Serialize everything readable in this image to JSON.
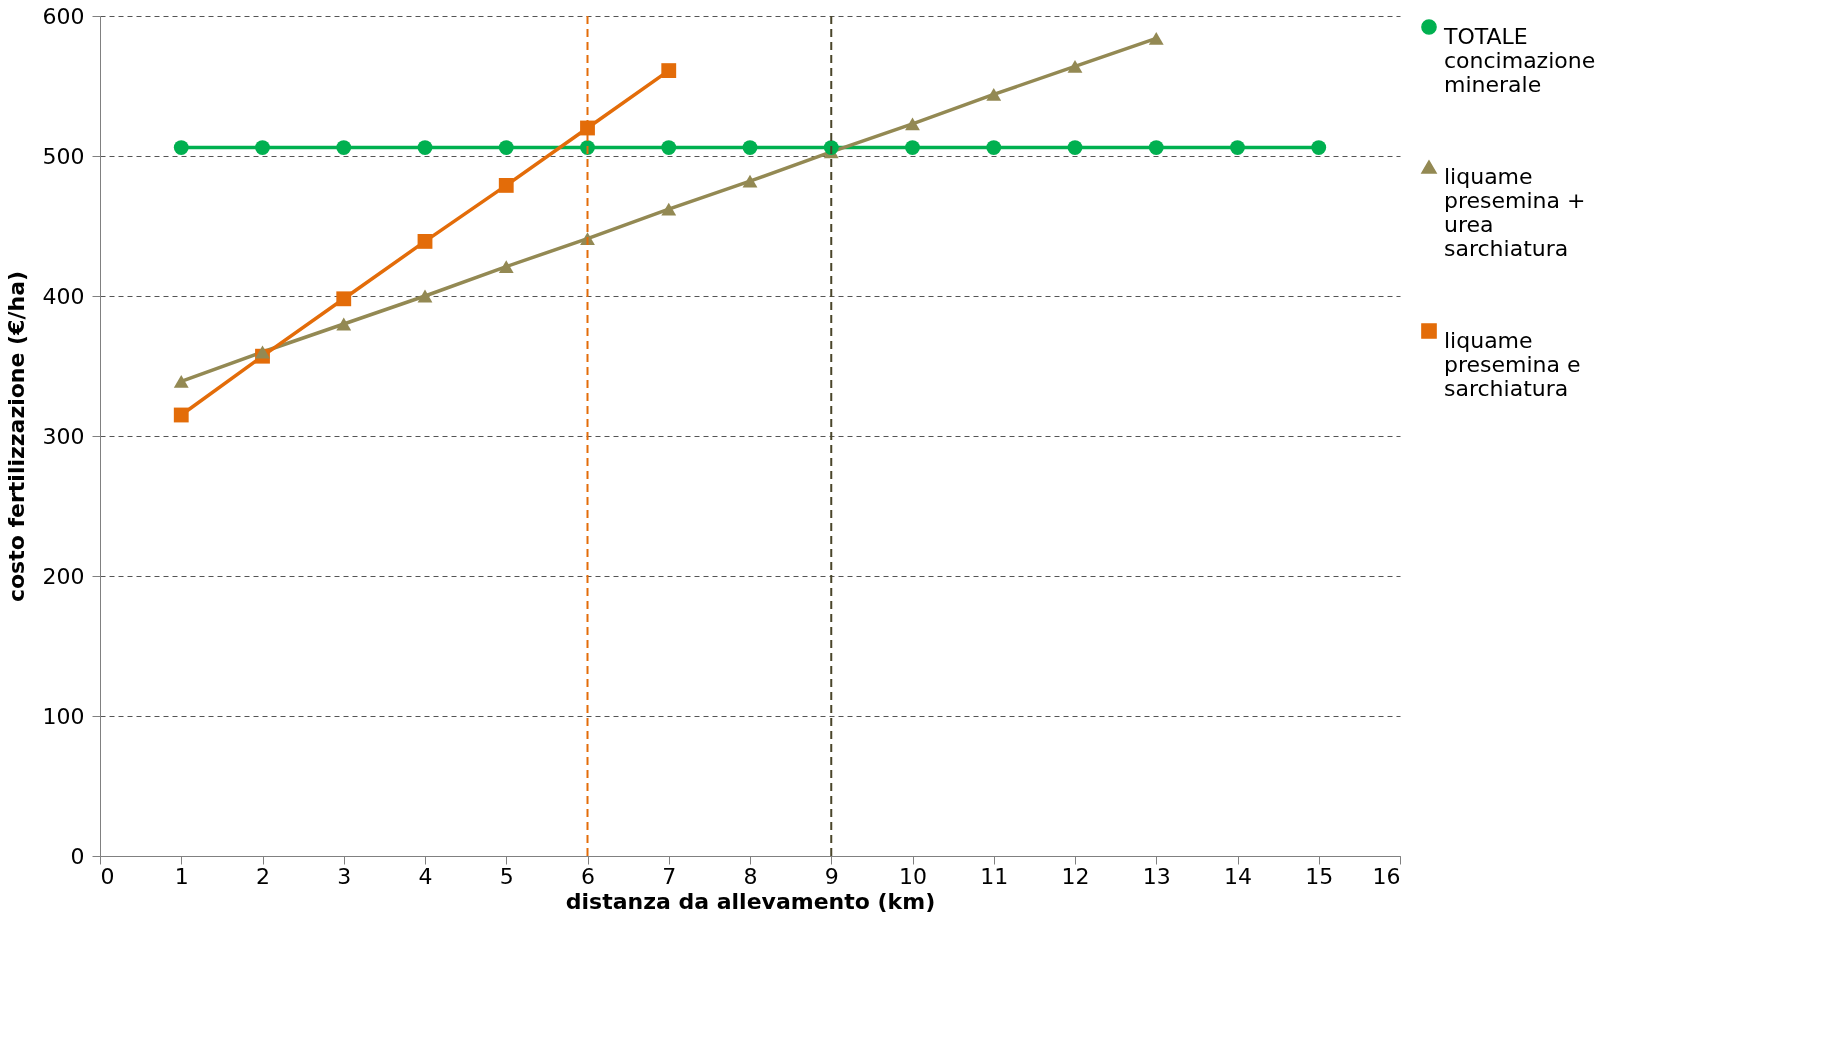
{
  "chart_data": {
    "type": "line",
    "xlabel": "distanza da allevamento (km)",
    "ylabel": "costo fertilizzazione (€/ha)",
    "xlim": [
      0,
      16
    ],
    "xticks": [
      0,
      1,
      2,
      3,
      4,
      5,
      6,
      7,
      8,
      9,
      10,
      11,
      12,
      13,
      14,
      15,
      16
    ],
    "ylim": [
      0,
      600
    ],
    "yticks": [
      0,
      100,
      200,
      300,
      400,
      500,
      600
    ],
    "grid": "y",
    "legend": "right",
    "line_style": "solid",
    "series": [
      {
        "name": "TOTALE concimazione minerale",
        "color": "#00b050",
        "marker": "circle",
        "x": [
          1,
          2,
          3,
          4,
          5,
          6,
          7,
          8,
          9,
          10,
          11,
          12,
          13,
          14,
          15
        ],
        "values": [
          506,
          506,
          506,
          506,
          506,
          506,
          506,
          506,
          506,
          506,
          506,
          506,
          506,
          506,
          506
        ]
      },
      {
        "name": "liquame presemina + urea sarchiatura",
        "color": "#938953",
        "marker": "triangle",
        "x": [
          1,
          2,
          3,
          4,
          5,
          6,
          7,
          8,
          9,
          10,
          11,
          12,
          13
        ],
        "values": [
          339,
          360,
          380,
          400,
          421,
          441,
          462,
          482,
          503,
          523,
          544,
          564,
          584
        ]
      },
      {
        "name": "liquame presemina e sarchiatura",
        "color": "#e36c09",
        "marker": "square",
        "x": [
          1,
          2,
          3,
          4,
          5,
          6,
          7
        ],
        "values": [
          315,
          357,
          398,
          439,
          479,
          520,
          561
        ]
      }
    ],
    "ref_lines": [
      {
        "axis": "x",
        "value": 6,
        "label": null,
        "color": "#e36c09",
        "line_style": "dashed"
      },
      {
        "axis": "x",
        "value": 9,
        "label": null,
        "color": "#4a452a",
        "line_style": "dashed"
      }
    ]
  }
}
